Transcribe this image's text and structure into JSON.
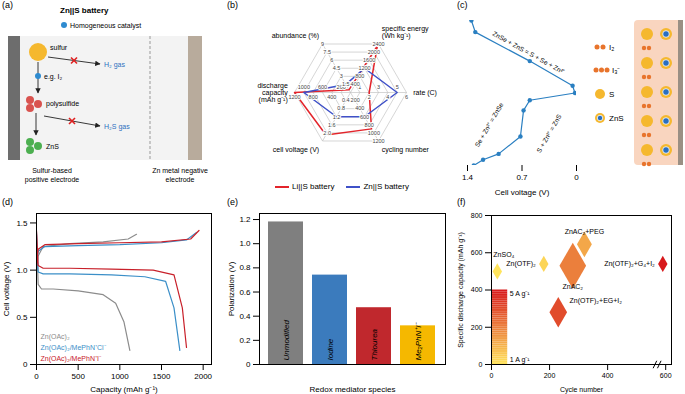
{
  "chart_data": [
    {
      "panel_label": "(a)",
      "type": "diagram",
      "title": "Zn||S battery",
      "legend_label": "Homogeneous catalyst",
      "nodes": [
        "sulfur",
        "polysulfide",
        "ZnS"
      ],
      "side_products": [
        "H₂ gas",
        "H₂S gas"
      ],
      "catalyst_example": "e.g. I₂",
      "electrodes": [
        "Sulfur-based positive electrode",
        "Zn metal negative electrode"
      ]
    },
    {
      "panel_label": "(b)",
      "type": "radar",
      "axes": [
        {
          "label": "abundance (%)",
          "lim": [
            0,
            9
          ],
          "ticks": [
            1.5,
            3,
            4.5,
            6,
            7.5,
            9
          ]
        },
        {
          "label": "specific energy (Wh kg⁻¹)",
          "lim": [
            0,
            2400
          ],
          "ticks": [
            400,
            800,
            1200,
            1600,
            2000,
            2400
          ]
        },
        {
          "label": "rate (C)",
          "lim": [
            0,
            6
          ],
          "ticks": [
            1,
            2,
            3,
            4,
            5,
            6
          ]
        },
        {
          "label": "cycling number",
          "lim": [
            0,
            1200
          ],
          "ticks": [
            200,
            400,
            600,
            800,
            1000,
            1200
          ]
        },
        {
          "label": "cell voltage (V)",
          "lim": [
            0,
            2.4
          ],
          "ticks": [
            0.4,
            0.8,
            1.2,
            1.6,
            {
              "value": 2,
              "label": "2.0"
            }
          ]
        },
        {
          "label": "discharge capacity (mAh g⁻¹)",
          "lim": [
            0,
            1200
          ],
          "ticks": [
            200,
            400,
            600,
            800,
            1000,
            1200
          ]
        }
      ],
      "series": [
        {
          "name": "Li||S battery",
          "color": "#e3242b",
          "values": [
            0.5,
            2300,
            2,
            900,
            2.1,
            1200
          ]
        },
        {
          "name": "Zn||S battery",
          "color": "#3f51c8",
          "values": [
            1.5,
            1200,
            5,
            600,
            1.2,
            1000
          ]
        }
      ],
      "legend": "bottom"
    },
    {
      "panel_label": "(c)",
      "type": "line",
      "color": "#2a7fc1",
      "marker": "circle",
      "x": [
        1.35,
        1.3,
        0.6,
        0.05,
        0.02,
        0.6,
        0.68,
        0.72,
        1.0,
        1.2,
        1.32
      ],
      "values": [
        0,
        8,
        28,
        45,
        50,
        55,
        62,
        80,
        92,
        96,
        100
      ],
      "xlabel": "Cell voltage (V)",
      "xlim": [
        1.4,
        0
      ],
      "xticks": [
        1.4,
        0.7,
        0
      ],
      "ylim": [
        0,
        100
      ],
      "tick_labels": "x",
      "annotations": [
        "ZnSe + ZnS = S + Se + Zn²⁺",
        "Se + Zn²⁺ = ZnSe",
        "S + Zn²⁺ = ZnS"
      ],
      "schematic_labels": [
        "I₂",
        "I₃⁻",
        "S",
        "ZnS"
      ]
    },
    {
      "panel_label": "(d)",
      "type": "line",
      "xlabel": "Capacity (mAh g⁻¹)",
      "ylabel": "Cell voltage (V)",
      "xlim": [
        0,
        2100
      ],
      "xticks": [
        0,
        500,
        1000,
        1500,
        2000
      ],
      "ylim": [
        0,
        1.6
      ],
      "yticks": [
        0,
        0.5,
        {
          "value": 1,
          "label": "1.0"
        },
        1.5
      ],
      "legend": "bottom-left",
      "series": [
        {
          "name": "Zn(OAc)₂",
          "color": "#8c8c8c",
          "x": [
            0,
            20,
            60,
            200,
            500,
            800,
            950,
            1050,
            1120,
            null,
            0,
            20,
            80,
            400,
            800,
            1100,
            1200
          ],
          "values": [
            1.38,
            0.85,
            0.8,
            0.8,
            0.78,
            0.74,
            0.65,
            0.45,
            0.15,
            null,
            1.0,
            1.15,
            1.25,
            1.28,
            1.3,
            1.33,
            1.38
          ]
        },
        {
          "name": "Zn(OAc)₂/MePhN⁺Cl⁻",
          "color": "#3b8fc8",
          "x": [
            0,
            20,
            80,
            400,
            900,
            1300,
            1550,
            1650,
            1720,
            null,
            0,
            20,
            100,
            500,
            1000,
            1500,
            1800,
            1920
          ],
          "values": [
            1.4,
            0.98,
            0.96,
            0.96,
            0.95,
            0.93,
            0.88,
            0.6,
            0.15,
            null,
            1.05,
            1.2,
            1.25,
            1.26,
            1.27,
            1.29,
            1.32,
            1.4
          ]
        },
        {
          "name": "Zn(OAc)₂/MePhN⁺I⁻",
          "color": "#c8202a",
          "x": [
            0,
            20,
            80,
            400,
            900,
            1400,
            1650,
            1750,
            1800,
            null,
            0,
            20,
            100,
            500,
            1000,
            1500,
            1850,
            1950
          ],
          "values": [
            1.42,
            1.05,
            1.02,
            1.02,
            1.01,
            1.0,
            0.95,
            0.6,
            0.18,
            null,
            1.05,
            1.22,
            1.27,
            1.28,
            1.29,
            1.3,
            1.33,
            1.42
          ]
        }
      ]
    },
    {
      "panel_label": "(e)",
      "type": "bar",
      "categories": [
        "Unmodified",
        "Iodine",
        "Thiourea",
        "Me₂PhN⁺I⁻"
      ],
      "values": [
        1.18,
        0.74,
        0.47,
        0.32
      ],
      "colors": [
        "#7f7f7f",
        "#3b7bbd",
        "#c0282d",
        "#f5b800"
      ],
      "xlabel": "Redox mediator species",
      "ylabel": "Polarization (V)",
      "ylim": [
        0,
        1.25
      ],
      "yticks": [
        0,
        0.2,
        0.4,
        0.6,
        0.8,
        {
          "value": 1,
          "label": "1.0"
        },
        1.2
      ],
      "tick_labels": "y"
    },
    {
      "panel_label": "(f)",
      "type": "scatter",
      "marker": "diamond",
      "xlabel": "Cycle number",
      "ylabel": "Specific discharge capacity (mAh g⁻¹)",
      "xlim": [
        0,
        620
      ],
      "xticks": [
        0,
        200,
        400,
        600
      ],
      "ylim": [
        0,
        800
      ],
      "yticks": [
        0,
        200,
        400,
        600,
        800
      ],
      "labels": [
        "ZnSO₄",
        "Zn(OTF)₂",
        "ZnAC₂+PEG",
        "ZnAC₂",
        "Zn(OTF)₂+EG+I₂",
        "Zn(OTF)₂+G₄+I₂"
      ],
      "x": [
        20,
        180,
        320,
        280,
        230,
        590
      ],
      "values": [
        500,
        540,
        645,
        530,
        280,
        540
      ],
      "rates": [
        1,
        1.3,
        2.2,
        3,
        4,
        5
      ],
      "sizes": [
        1,
        1,
        2.5,
        8,
        3.5,
        1
      ],
      "colorbar": {
        "range": [
          1,
          5
        ],
        "colors": [
          "#ffe45c",
          "#d7191c"
        ],
        "labels": [
          {
            "value": 1,
            "label": "1 A g⁻¹"
          },
          {
            "value": 5,
            "label": "5 A g⁻¹"
          }
        ]
      }
    }
  ]
}
